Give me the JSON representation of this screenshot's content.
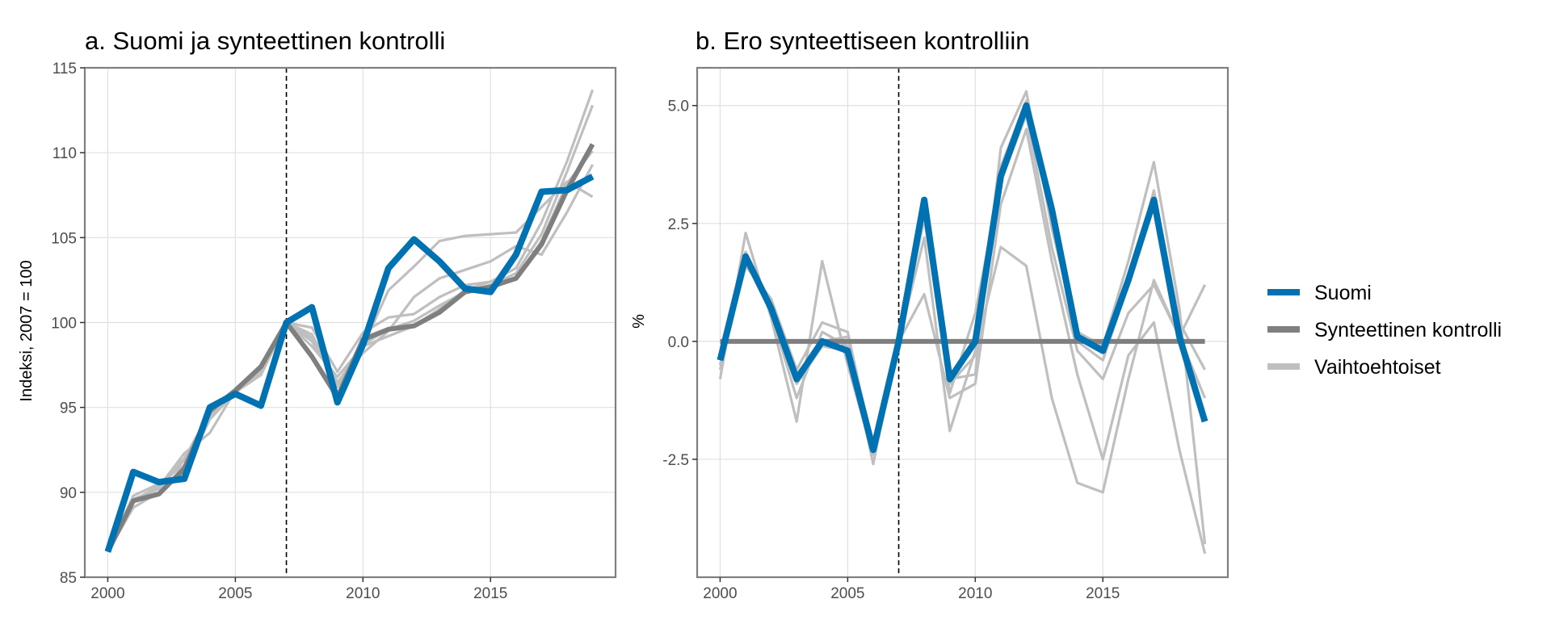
{
  "colors": {
    "suomi": "#0072b2",
    "synteettinen": "#7f7f7f",
    "vaihtoehtoiset": "#bfbfbf",
    "grid": "#e0e0e0",
    "frame": "#7f7f7f"
  },
  "legend": {
    "items": [
      {
        "key": "suomi",
        "label": "Suomi"
      },
      {
        "key": "synteettinen",
        "label": "Synteettinen kontrolli"
      },
      {
        "key": "vaihtoehtoiset",
        "label": "Vaihtoehtoiset"
      }
    ]
  },
  "chart_data": [
    {
      "id": "a",
      "type": "line",
      "title": "a. Suomi ja synteettinen kontrolli",
      "xlabel": "",
      "ylabel": "Indeksi, 2007 = 100",
      "xlim": [
        1999.1,
        2019.9
      ],
      "ylim": [
        85,
        115
      ],
      "x_ticks": [
        2000,
        2005,
        2010,
        2015
      ],
      "y_ticks": [
        85,
        90,
        95,
        100,
        105,
        110,
        115
      ],
      "y_tick_labels": [
        "85",
        "90",
        "95",
        "100",
        "105",
        "110",
        "115"
      ],
      "treatment_year": 2007,
      "x": [
        2000,
        2001,
        2002,
        2003,
        2004,
        2005,
        2006,
        2007,
        2008,
        2009,
        2010,
        2011,
        2012,
        2013,
        2014,
        2015,
        2016,
        2017,
        2018,
        2019
      ],
      "alternatives": [
        [
          86.5,
          89.4,
          90.3,
          92.3,
          93.5,
          96.0,
          97.3,
          100.0,
          99.7,
          97.1,
          99.4,
          100.3,
          100.5,
          101.5,
          102.2,
          102.4,
          103.2,
          105.9,
          109.5,
          113.7
        ],
        [
          86.5,
          89.8,
          90.5,
          91.6,
          94.6,
          95.9,
          97.1,
          100.0,
          99.1,
          96.2,
          98.6,
          101.9,
          103.3,
          104.8,
          105.1,
          105.2,
          105.3,
          106.8,
          108.3,
          107.4
        ],
        [
          86.5,
          89.1,
          90.0,
          91.2,
          94.3,
          95.9,
          96.9,
          100.0,
          98.6,
          96.8,
          98.6,
          99.2,
          99.8,
          100.8,
          101.9,
          102.4,
          102.6,
          104.8,
          108.2,
          110.1
        ],
        [
          86.5,
          89.6,
          90.2,
          91.9,
          94.5,
          95.8,
          97.4,
          100.0,
          99.3,
          96.5,
          98.2,
          99.5,
          101.5,
          102.6,
          103.1,
          103.6,
          104.5,
          104.0,
          106.5,
          109.3
        ],
        [
          86.5,
          89.5,
          90.4,
          92.0,
          94.7,
          95.9,
          97.0,
          100.0,
          98.9,
          96.4,
          98.7,
          99.6,
          100.1,
          101.0,
          101.8,
          102.2,
          102.9,
          105.2,
          108.9,
          112.8
        ]
      ],
      "synthetic": [
        86.5,
        89.5,
        89.9,
        91.4,
        94.8,
        96.0,
        97.4,
        100.0,
        98.0,
        95.6,
        99.0,
        99.6,
        99.8,
        100.6,
        101.8,
        102.1,
        102.6,
        104.6,
        107.8,
        110.5
      ],
      "suomi": [
        86.5,
        91.2,
        90.6,
        90.8,
        95.0,
        95.8,
        95.1,
        100.0,
        100.9,
        95.3,
        98.7,
        103.2,
        104.9,
        103.6,
        102.0,
        101.8,
        104.0,
        107.7,
        107.8,
        108.6
      ]
    },
    {
      "id": "b",
      "type": "line",
      "title": "b. Ero synteettiseen kontrolliin",
      "xlabel": "",
      "ylabel": "%",
      "xlim": [
        1999.1,
        2019.9
      ],
      "ylim": [
        -5.0,
        5.8
      ],
      "x_ticks": [
        2000,
        2005,
        2010,
        2015
      ],
      "y_ticks": [
        -2.5,
        0,
        2.5,
        5
      ],
      "y_tick_labels": [
        "-2.5",
        "0.0",
        "2.5",
        "5.0"
      ],
      "treatment_year": 2007,
      "x": [
        2000,
        2001,
        2002,
        2003,
        2004,
        2005,
        2006,
        2007,
        2008,
        2009,
        2010,
        2011,
        2012,
        2013,
        2014,
        2015,
        2016,
        2017,
        2018,
        2019
      ],
      "alternatives": [
        [
          -0.8,
          2.3,
          0.5,
          -1.7,
          1.7,
          -0.5,
          -2.4,
          0.0,
          2.8,
          -0.8,
          -0.7,
          4.1,
          5.3,
          2.4,
          0.2,
          -0.1,
          1.7,
          3.8,
          0.7,
          -4.3
        ],
        [
          -0.5,
          1.6,
          0.9,
          -0.6,
          0.4,
          0.2,
          -2.3,
          0.0,
          2.2,
          -1.9,
          -0.2,
          2.0,
          1.6,
          -1.2,
          -3.0,
          -3.2,
          -0.8,
          1.3,
          0.1,
          1.2
        ],
        [
          -0.6,
          1.9,
          0.6,
          -1.2,
          0.2,
          -0.1,
          -2.6,
          0.0,
          1.0,
          -1.2,
          -0.9,
          2.9,
          4.5,
          1.7,
          -0.7,
          -2.5,
          -0.3,
          0.4,
          -2.3,
          -4.5
        ],
        [
          -0.4,
          1.7,
          0.7,
          -0.9,
          -0.1,
          -0.2,
          -2.4,
          0.0,
          3.0,
          -1.1,
          0.6,
          3.4,
          4.8,
          2.0,
          -0.2,
          -0.8,
          0.6,
          1.2,
          0.1,
          -1.2
        ],
        [
          -0.5,
          1.8,
          0.8,
          -0.7,
          0.0,
          0.1,
          -2.2,
          0.0,
          2.6,
          -0.9,
          -0.3,
          3.7,
          5.1,
          2.6,
          0.0,
          -0.4,
          1.2,
          3.2,
          0.4,
          -0.6
        ]
      ],
      "synthetic": [
        0,
        0,
        0,
        0,
        0,
        0,
        0,
        0,
        0,
        0,
        0,
        0,
        0,
        0,
        0,
        0,
        0,
        0,
        0,
        0
      ],
      "suomi": [
        -0.4,
        1.8,
        0.7,
        -0.8,
        0.0,
        -0.2,
        -2.3,
        0.0,
        3.0,
        -0.8,
        0.0,
        3.5,
        5.0,
        2.8,
        0.1,
        -0.2,
        1.3,
        3.0,
        0.1,
        -1.7
      ]
    }
  ]
}
